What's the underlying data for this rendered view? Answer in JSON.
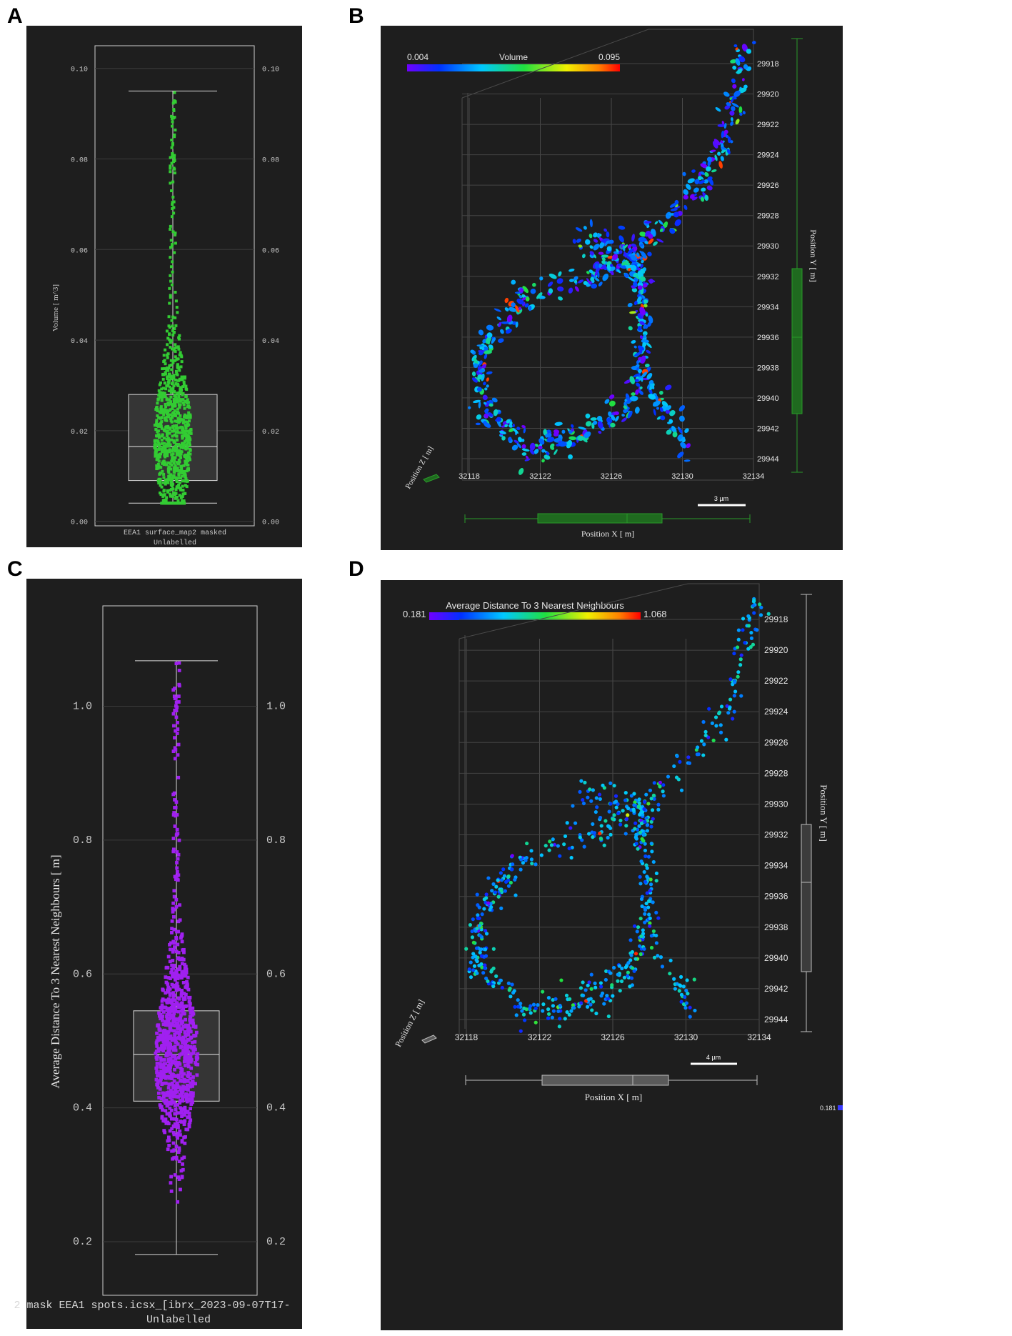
{
  "panel_letters": {
    "a": "A",
    "b": "B",
    "c": "C",
    "d": "D"
  },
  "colors": {
    "panel_bg": "#1e1e1e",
    "grid": "#3a3a3a",
    "box_green": "#1f7a1f",
    "points_green": "#33cc33",
    "points_purple": "#a020f0",
    "whisker": "#d8d8d8",
    "text": "#c8c8c8",
    "text_bright": "#e6e6e6"
  },
  "panelA": {
    "ylabel": "Volume [ m^3]",
    "category_line1": "EEA1 surface_map2 masked",
    "category_line2": "Unlabelled",
    "ticks": [
      "0.10",
      "0.08",
      "0.06",
      "0.04",
      "0.02",
      "0.00"
    ],
    "ticks_right": [
      "0.10",
      "0.08",
      "0.06",
      "0.04",
      "0.02",
      "0.00"
    ],
    "stats": {
      "min": 0.004,
      "q1": 0.009,
      "median": 0.0165,
      "q3": 0.028,
      "max": 0.095
    },
    "ylim": [
      -0.001,
      0.105
    ]
  },
  "panelB": {
    "colorbar": {
      "min": "0.004",
      "title": "Volume",
      "max": "0.095"
    },
    "x_ticks": [
      "32118",
      "32122",
      "32126",
      "32130",
      "32134"
    ],
    "y_ticks": [
      "29918",
      "29920",
      "29922",
      "29924",
      "29926",
      "29928",
      "29930",
      "29932",
      "29934",
      "29936",
      "29938",
      "29940",
      "29942",
      "29944"
    ],
    "xlabel": "Position X [ m]",
    "ylabel": "Position Y [ m]",
    "zlabel": "Position Z [ m]",
    "scalebar": "3 µm"
  },
  "panelC": {
    "ylabel": "Average Distance To 3 Nearest Neighbours [ m]",
    "category_line1": "2 mask EEA1 spots.icsx_[ibrx_2023-09-07T17-",
    "category_line2": "Unlabelled",
    "ticks": [
      "1.0",
      "0.8",
      "0.6",
      "0.4",
      "0.2"
    ],
    "ticks_right": [
      "1.0",
      "0.8",
      "0.6",
      "0.4",
      "0.2"
    ],
    "stats": {
      "min": 0.181,
      "q1": 0.41,
      "median": 0.48,
      "q3": 0.545,
      "max": 1.068
    },
    "ylim": [
      0.12,
      1.15
    ]
  },
  "panelD": {
    "colorbar": {
      "min": "0.181",
      "title": "Average Distance To 3 Nearest Neighbours",
      "max": "1.068"
    },
    "x_ticks": [
      "32118",
      "32122",
      "32126",
      "32130",
      "32134"
    ],
    "y_ticks": [
      "29918",
      "29920",
      "29922",
      "29924",
      "29926",
      "29928",
      "29930",
      "29932",
      "29934",
      "29936",
      "29938",
      "29940",
      "29942",
      "29944"
    ],
    "xlabel": "Position X [ m]",
    "ylabel": "Position Y [ m]",
    "zlabel": "Position Z [ m]",
    "scalebar": "4 µm",
    "corner_value": "0.181"
  }
}
